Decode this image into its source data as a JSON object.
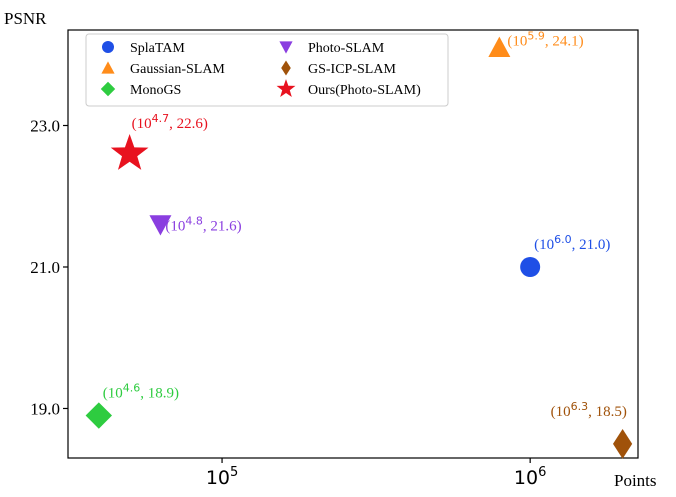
{
  "chart_data": {
    "type": "scatter",
    "xlabel": "Points",
    "ylabel": "PSNR",
    "xscale": "log",
    "xlim": [
      31623,
      2238721
    ],
    "ylim": [
      18.3,
      24.35
    ],
    "xticks": [
      {
        "value": 100000,
        "base": "10",
        "exp": "5"
      },
      {
        "value": 1000000,
        "base": "10",
        "exp": "6"
      }
    ],
    "yticks": [
      {
        "value": 19.0,
        "label": "19.0"
      },
      {
        "value": 21.0,
        "label": "21.0"
      },
      {
        "value": 23.0,
        "label": "23.0"
      }
    ],
    "grid": false,
    "legend_position": "top-left",
    "series": [
      {
        "name": "SplaTAM",
        "marker": "circle",
        "color": "#1f4fe6",
        "x": 1000000,
        "y": 21.0,
        "label": {
          "prefix": "(10",
          "exp": "6.0",
          "suffix": ", 21.0)"
        }
      },
      {
        "name": "Gaussian-SLAM",
        "marker": "triangle-up",
        "color": "#ff8c1a",
        "x": 794328,
        "y": 24.1,
        "label": {
          "prefix": "(10",
          "exp": "5.9",
          "suffix": ", 24.1)"
        }
      },
      {
        "name": "MonoGS",
        "marker": "diamond",
        "color": "#2ecc40",
        "x": 39811,
        "y": 18.9,
        "label": {
          "prefix": "(10",
          "exp": "4.6",
          "suffix": ", 18.9)"
        }
      },
      {
        "name": "Photo-SLAM",
        "marker": "triangle-down",
        "color": "#8a3ee0",
        "x": 63096,
        "y": 21.6,
        "label": {
          "prefix": "(10",
          "exp": "4.8",
          "suffix": ", 21.6)"
        }
      },
      {
        "name": "GS-ICP-SLAM",
        "marker": "thin-diamond",
        "color": "#a0520a",
        "x": 1995262,
        "y": 18.5,
        "label": {
          "prefix": "(10",
          "exp": "6.3",
          "suffix": ", 18.5)"
        }
      },
      {
        "name": "Ours(Photo-SLAM)",
        "marker": "star",
        "color": "#e8121f",
        "x": 50119,
        "y": 22.6,
        "label": {
          "prefix": "(10",
          "exp": "4.7",
          "suffix": ", 22.6)"
        }
      }
    ]
  }
}
